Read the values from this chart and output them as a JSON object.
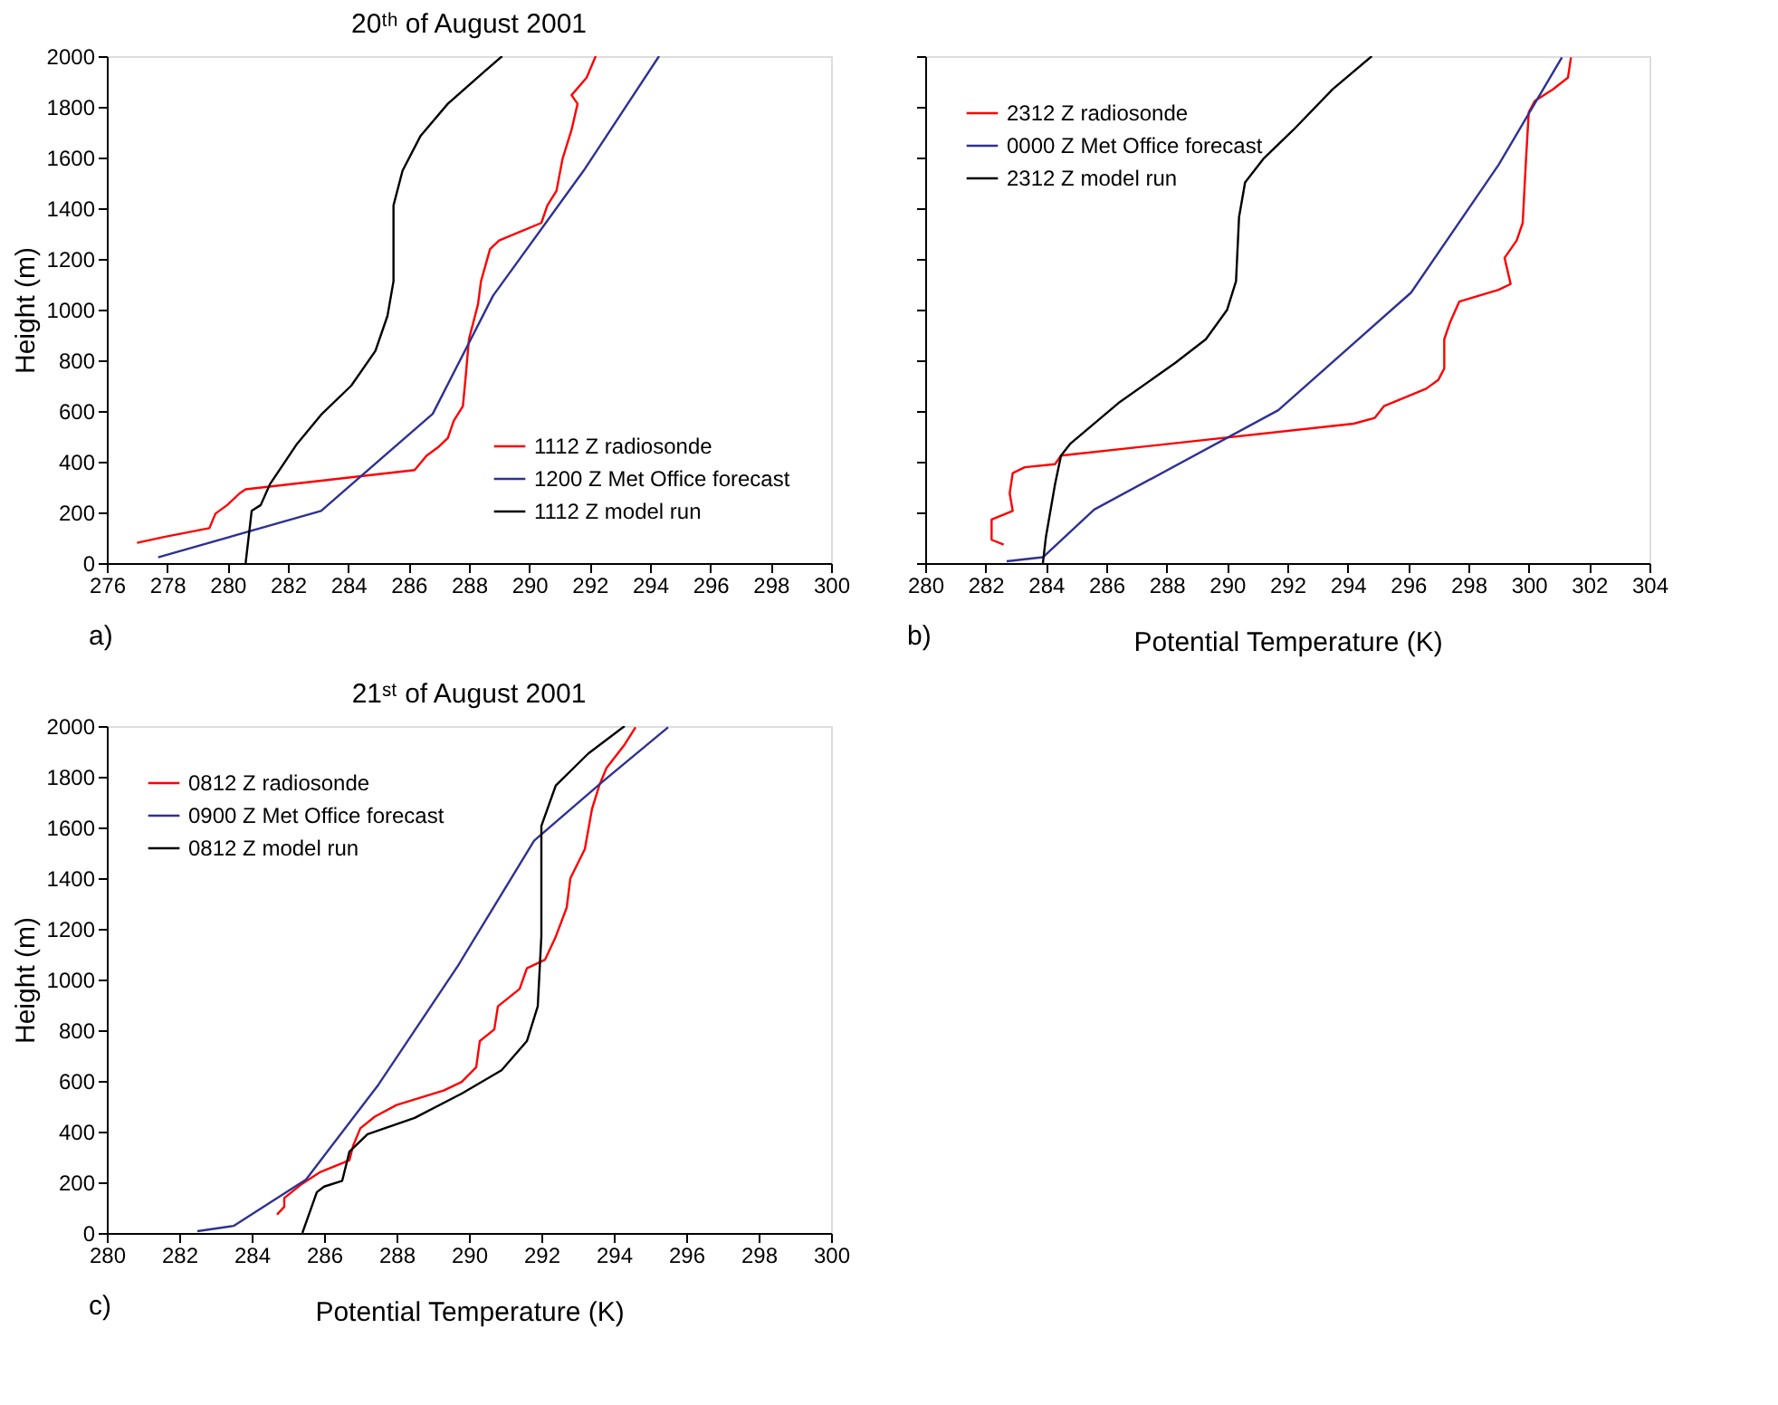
{
  "chart_data": [
    {
      "type": "line",
      "title": "20ᵗʰ of August 2001",
      "ylabel": "Height (m)",
      "xlim": [
        276,
        300
      ],
      "xticks": [
        276,
        278,
        280,
        282,
        284,
        286,
        288,
        290,
        292,
        294,
        296,
        298,
        300
      ],
      "ylim": [
        0,
        2000
      ],
      "yticks": [
        0,
        200,
        400,
        600,
        800,
        1000,
        1200,
        1400,
        1600,
        1800,
        2000
      ],
      "grid": false,
      "legend": "bottom right",
      "annotations": [
        "a)"
      ],
      "series": [
        {
          "name": "1112 Z radiosonde",
          "color": "#ff0000",
          "x": [
            277.0,
            277.9,
            279.4,
            279.6,
            280.0,
            280.4,
            280.6,
            286.2,
            286.6,
            287.0,
            287.3,
            287.5,
            287.8,
            287.9,
            288.0,
            288.3,
            288.4,
            288.7,
            289.0,
            290.4,
            290.6,
            290.9,
            291.1,
            291.4,
            291.6,
            291.4,
            291.9,
            292.2
          ],
          "values": [
            80,
            103,
            138,
            195,
            230,
            275,
            291,
            367,
            424,
            459,
            493,
            562,
            619,
            745,
            883,
            1021,
            1112,
            1239,
            1273,
            1342,
            1411,
            1468,
            1594,
            1709,
            1812,
            1846,
            1915,
            2000
          ]
        },
        {
          "name": "1200 Z Met Office forecast",
          "color": "#2e3192",
          "x": [
            277.7,
            283.1,
            286.8,
            288.8,
            291.8,
            294.3
          ],
          "values": [
            23,
            206,
            589,
            1055,
            1548,
            2000
          ]
        },
        {
          "name": "1112 Z model run",
          "color": "#000000",
          "x": [
            280.6,
            280.8,
            281.1,
            281.4,
            282.3,
            283.1,
            284.1,
            284.9,
            285.3,
            285.5,
            285.5,
            285.8,
            286.4,
            287.3,
            288.5,
            289.1
          ],
          "values": [
            0,
            206,
            229,
            310,
            470,
            585,
            700,
            837,
            975,
            1112,
            1411,
            1548,
            1686,
            1812,
            1938,
            2000
          ]
        }
      ]
    },
    {
      "type": "line",
      "xlabel": "Potential Temperature (K)",
      "xlim": [
        280,
        304
      ],
      "xticks": [
        280,
        282,
        284,
        286,
        288,
        290,
        292,
        294,
        296,
        298,
        300,
        302,
        304
      ],
      "ylim": [
        0,
        2000
      ],
      "yticks": [
        0,
        200,
        400,
        600,
        800,
        1000,
        1200,
        1400,
        1600,
        1800,
        2000
      ],
      "tick_labels": "x",
      "grid": false,
      "legend": "top left",
      "annotations": [
        "b)"
      ],
      "series": [
        {
          "name": "2312 Z radiosonde",
          "color": "#ff0000",
          "x": [
            282.6,
            282.2,
            282.2,
            282.9,
            282.8,
            282.9,
            283.3,
            284.3,
            284.5,
            294.2,
            294.9,
            295.2,
            296.6,
            297.0,
            297.2,
            297.2,
            297.4,
            297.7,
            299.0,
            299.4,
            299.2,
            299.6,
            299.8,
            299.9,
            300.0,
            300.2,
            300.8,
            301.3,
            301.4
          ],
          "values": [
            73,
            92,
            172,
            206,
            275,
            355,
            378,
            390,
            424,
            550,
            573,
            619,
            688,
            722,
            768,
            883,
            952,
            1032,
            1078,
            1101,
            1204,
            1273,
            1342,
            1571,
            1778,
            1823,
            1869,
            1915,
            1995
          ]
        },
        {
          "name": "0000 Z Met Office forecast",
          "color": "#2e3192",
          "x": [
            282.7,
            283.9,
            285.6,
            291.7,
            296.1,
            299.0,
            301.1
          ],
          "values": [
            7,
            23,
            211,
            603,
            1067,
            1571,
            1995
          ]
        },
        {
          "name": "2312 Z model run",
          "color": "#000000",
          "x": [
            283.9,
            284.0,
            284.3,
            284.5,
            284.8,
            286.4,
            288.3,
            289.3,
            290.0,
            290.3,
            290.4,
            290.6,
            291.2,
            292.2,
            293.5,
            294.8
          ],
          "values": [
            0,
            103,
            310,
            424,
            470,
            631,
            791,
            883,
            998,
            1112,
            1365,
            1502,
            1594,
            1709,
            1869,
            2000
          ]
        }
      ]
    },
    {
      "type": "line",
      "title": "21ˢᵗ of August 2001",
      "xlabel": "Potential Temperature (K)",
      "ylabel": "Height (m)",
      "xlim": [
        280,
        300
      ],
      "xticks": [
        280,
        282,
        284,
        286,
        288,
        290,
        292,
        294,
        296,
        298,
        300
      ],
      "ylim": [
        0,
        2000
      ],
      "yticks": [
        0,
        200,
        400,
        600,
        800,
        1000,
        1200,
        1400,
        1600,
        1800,
        2000
      ],
      "grid": false,
      "legend": "top left",
      "annotations": [
        "c)"
      ],
      "series": [
        {
          "name": "0812 Z radiosonde",
          "color": "#ff0000",
          "x": [
            284.7,
            284.9,
            284.9,
            285.4,
            285.9,
            286.3,
            286.7,
            286.8,
            287.0,
            287.4,
            288.0,
            289.3,
            289.8,
            290.2,
            290.3,
            290.7,
            290.8,
            291.4,
            291.6,
            292.1,
            292.4,
            292.7,
            292.8,
            293.2,
            293.4,
            293.6,
            293.8,
            294.3,
            294.6
          ],
          "values": [
            73,
            103,
            138,
            195,
            241,
            264,
            287,
            344,
            413,
            459,
            505,
            562,
            596,
            654,
            757,
            803,
            894,
            963,
            1044,
            1078,
            1170,
            1284,
            1399,
            1514,
            1674,
            1766,
            1835,
            1927,
            1995
          ]
        },
        {
          "name": "0900 Z Met Office forecast",
          "color": "#2e3192",
          "x": [
            282.5,
            283.5,
            285.5,
            287.5,
            289.7,
            291.8,
            293.7,
            295.5
          ],
          "values": [
            7,
            28,
            211,
            585,
            1055,
            1548,
            1782,
            1995
          ]
        },
        {
          "name": "0812 Z model run",
          "color": "#000000",
          "x": [
            285.4,
            285.8,
            286.0,
            286.5,
            286.7,
            287.2,
            288.5,
            289.8,
            290.9,
            291.6,
            291.9,
            292.0,
            292.0,
            292.4,
            293.3,
            294.3
          ],
          "values": [
            0,
            161,
            183,
            206,
            321,
            390,
            454,
            550,
            642,
            757,
            894,
            1170,
            1606,
            1766,
            1892,
            2000
          ]
        }
      ]
    }
  ]
}
